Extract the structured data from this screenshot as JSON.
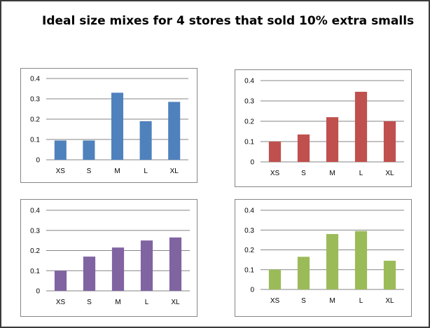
{
  "title": "Ideal size mixes for 4 stores that sold 10% extra smalls",
  "chart_data": [
    {
      "type": "bar",
      "categories": [
        "XS",
        "S",
        "M",
        "L",
        "XL"
      ],
      "values": [
        0.095,
        0.095,
        0.33,
        0.19,
        0.285
      ],
      "color": "#4f81bd",
      "ylim": [
        0,
        0.4
      ],
      "yticks": [
        "0",
        "0.1",
        "0.2",
        "0.3",
        "0.4"
      ],
      "grid": true,
      "title": "",
      "xlabel": "",
      "ylabel": ""
    },
    {
      "type": "bar",
      "categories": [
        "XS",
        "S",
        "M",
        "L",
        "XL"
      ],
      "values": [
        0.1,
        0.135,
        0.22,
        0.345,
        0.2
      ],
      "color": "#c0504d",
      "ylim": [
        0,
        0.4
      ],
      "yticks": [
        "0",
        "0.1",
        "0.2",
        "0.3",
        "0.4"
      ],
      "grid": true,
      "title": "",
      "xlabel": "",
      "ylabel": ""
    },
    {
      "type": "bar",
      "categories": [
        "XS",
        "S",
        "M",
        "L",
        "XL"
      ],
      "values": [
        0.1,
        0.17,
        0.215,
        0.25,
        0.265
      ],
      "color": "#8064a2",
      "ylim": [
        0,
        0.4
      ],
      "yticks": [
        "0",
        "0.1",
        "0.2",
        "0.3",
        "0.4"
      ],
      "grid": true,
      "title": "",
      "xlabel": "",
      "ylabel": ""
    },
    {
      "type": "bar",
      "categories": [
        "XS",
        "S",
        "M",
        "L",
        "XL"
      ],
      "values": [
        0.1,
        0.165,
        0.28,
        0.295,
        0.145
      ],
      "color": "#9bbb59",
      "ylim": [
        0,
        0.4
      ],
      "yticks": [
        "0",
        "0.1",
        "0.2",
        "0.3",
        "0.4"
      ],
      "grid": true,
      "title": "",
      "xlabel": "",
      "ylabel": ""
    }
  ]
}
